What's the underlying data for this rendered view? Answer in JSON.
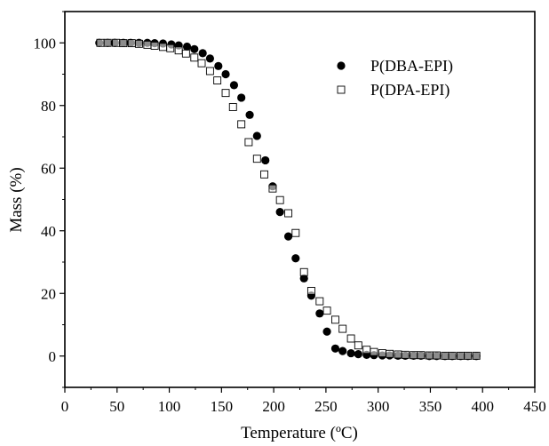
{
  "chart_data": {
    "type": "scatter",
    "title": "",
    "xlabel": "Temperature (ºC)",
    "ylabel": "Mass (%)",
    "xlim": [
      0,
      450
    ],
    "ylim": [
      -10,
      110
    ],
    "xticks": [
      0,
      50,
      100,
      150,
      200,
      250,
      300,
      350,
      400,
      450
    ],
    "yticks": [
      0,
      20,
      40,
      60,
      80,
      100
    ],
    "grid": false,
    "legend_position": "top-right",
    "series": [
      {
        "name": "P(DBA-EPI)",
        "marker": "filled-circle",
        "color": "#000000",
        "points": [
          [
            33,
            100.0
          ],
          [
            41,
            100.0
          ],
          [
            48,
            100.0
          ],
          [
            56,
            100.0
          ],
          [
            63,
            100.0
          ],
          [
            71,
            100.0
          ],
          [
            79,
            100.0
          ],
          [
            86,
            99.9
          ],
          [
            94,
            99.8
          ],
          [
            102,
            99.5
          ],
          [
            109,
            99.2
          ],
          [
            117,
            98.8
          ],
          [
            124,
            98.0
          ],
          [
            132,
            96.7
          ],
          [
            139,
            95.0
          ],
          [
            147,
            92.6
          ],
          [
            154,
            90.0
          ],
          [
            162,
            86.5
          ],
          [
            169,
            82.5
          ],
          [
            177,
            77.0
          ],
          [
            184,
            70.3
          ],
          [
            192,
            62.5
          ],
          [
            199,
            54.2
          ],
          [
            206,
            46.0
          ],
          [
            214,
            38.2
          ],
          [
            221,
            31.2
          ],
          [
            229,
            24.8
          ],
          [
            236,
            19.3
          ],
          [
            244,
            13.6
          ],
          [
            251,
            7.8
          ],
          [
            259,
            2.4
          ],
          [
            266,
            1.6
          ],
          [
            274,
            0.9
          ],
          [
            281,
            0.6
          ],
          [
            289,
            0.4
          ],
          [
            296,
            0.3
          ],
          [
            304,
            0.2
          ],
          [
            311,
            0.2
          ],
          [
            319,
            0.1
          ],
          [
            326,
            0.1
          ],
          [
            334,
            0.1
          ],
          [
            341,
            0.1
          ],
          [
            349,
            0.0
          ],
          [
            356,
            0.0
          ],
          [
            364,
            0.0
          ],
          [
            371,
            0.0
          ],
          [
            379,
            0.0
          ],
          [
            386,
            0.0
          ],
          [
            394,
            0.0
          ]
        ]
      },
      {
        "name": "P(DPA-EPI)",
        "marker": "open-square",
        "color": "#000000",
        "points": [
          [
            34,
            100.0
          ],
          [
            41,
            100.0
          ],
          [
            49,
            100.0
          ],
          [
            56,
            99.9
          ],
          [
            64,
            99.9
          ],
          [
            71,
            99.7
          ],
          [
            79,
            99.4
          ],
          [
            86,
            99.1
          ],
          [
            94,
            98.7
          ],
          [
            101,
            98.3
          ],
          [
            109,
            97.6
          ],
          [
            116,
            96.6
          ],
          [
            124,
            95.3
          ],
          [
            131,
            93.5
          ],
          [
            139,
            91.0
          ],
          [
            146,
            88.0
          ],
          [
            154,
            84.0
          ],
          [
            161,
            79.5
          ],
          [
            169,
            74.0
          ],
          [
            176,
            68.3
          ],
          [
            184,
            63.0
          ],
          [
            191,
            58.0
          ],
          [
            199,
            53.5
          ],
          [
            206,
            49.8
          ],
          [
            214,
            45.6
          ],
          [
            221,
            39.3
          ],
          [
            229,
            26.8
          ],
          [
            236,
            20.8
          ],
          [
            244,
            17.5
          ],
          [
            251,
            14.5
          ],
          [
            259,
            11.6
          ],
          [
            266,
            8.7
          ],
          [
            274,
            5.6
          ],
          [
            281,
            3.4
          ],
          [
            289,
            2.0
          ],
          [
            296,
            1.3
          ],
          [
            304,
            0.9
          ],
          [
            311,
            0.7
          ],
          [
            319,
            0.5
          ],
          [
            326,
            0.4
          ],
          [
            334,
            0.3
          ],
          [
            341,
            0.3
          ],
          [
            349,
            0.2
          ],
          [
            356,
            0.2
          ],
          [
            364,
            0.1
          ],
          [
            371,
            0.1
          ],
          [
            379,
            0.1
          ],
          [
            386,
            0.1
          ],
          [
            394,
            0.1
          ]
        ]
      }
    ]
  }
}
